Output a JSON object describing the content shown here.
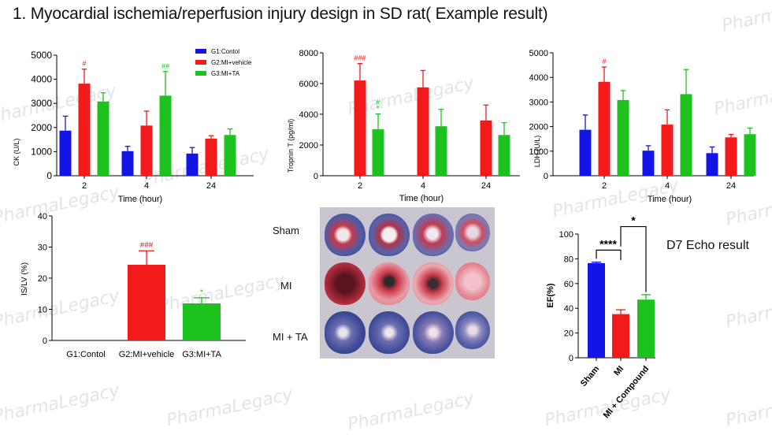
{
  "page_title": "1. Myocardial ischemia/reperfusion injury design in SD rat( Example result)",
  "watermark": "PharmaLegacy",
  "colors": {
    "g1": "#1414e6",
    "g2": "#f21a1a",
    "g3": "#1ec21e",
    "sham": "#1414e6",
    "mi": "#f21a1a",
    "compound": "#1ec21e"
  },
  "chart_data": [
    {
      "id": "ck",
      "type": "bar",
      "xlabel": "Time (hour)",
      "ylabel": "CK (U/L)",
      "ylim": [
        0,
        5000
      ],
      "yticks": [
        "0",
        "1000",
        "2000",
        "3000",
        "4000",
        "5000"
      ],
      "categories": [
        "2",
        "4",
        "24"
      ],
      "legend": [
        "G1:Contol",
        "G2:MI+vehicle",
        "G3:MI+TA"
      ],
      "series": [
        {
          "name": "G1:Contol",
          "values": [
            1870,
            1020,
            920
          ],
          "err": [
            600,
            200,
            250
          ],
          "sig": [
            "",
            "",
            ""
          ]
        },
        {
          "name": "G2:MI+vehicle",
          "values": [
            3820,
            2080,
            1540
          ],
          "err": [
            600,
            600,
            120
          ],
          "sig": [
            "#",
            "",
            ""
          ]
        },
        {
          "name": "G3:MI+TA",
          "values": [
            3080,
            3320,
            1690
          ],
          "err": [
            360,
            1000,
            250
          ],
          "sig": [
            "",
            "##",
            ""
          ]
        }
      ]
    },
    {
      "id": "troponin",
      "type": "bar",
      "xlabel": "Time (hour)",
      "ylabel": "Tropnin T (pg/ml)",
      "ylim": [
        0,
        8000
      ],
      "yticks": [
        "0",
        "2000",
        "4000",
        "6000",
        "8000"
      ],
      "categories": [
        "2",
        "4",
        "24"
      ],
      "series": [
        {
          "name": "G1:Contol",
          "values": [
            0,
            0,
            0
          ],
          "err": [
            0,
            0,
            0
          ],
          "sig": [
            "",
            "",
            ""
          ]
        },
        {
          "name": "G2:MI+vehicle",
          "values": [
            6200,
            5750,
            3600
          ],
          "err": [
            1100,
            1100,
            1000
          ],
          "sig": [
            "###",
            "",
            ""
          ]
        },
        {
          "name": "G3:MI+TA",
          "values": [
            3020,
            3220,
            2650
          ],
          "err": [
            1000,
            1100,
            800
          ],
          "sig": [
            "#\n*",
            "",
            ""
          ]
        }
      ]
    },
    {
      "id": "ldh",
      "type": "bar",
      "xlabel": "Time (hour)",
      "ylabel": "LDH (U/L)",
      "ylim": [
        0,
        5000
      ],
      "yticks": [
        "0",
        "1000",
        "2000",
        "3000",
        "4000",
        "5000"
      ],
      "categories": [
        "2",
        "4",
        "24"
      ],
      "series": [
        {
          "name": "G1:Contol",
          "values": [
            1870,
            1020,
            920
          ],
          "err": [
            600,
            200,
            250
          ],
          "sig": [
            "",
            "",
            ""
          ]
        },
        {
          "name": "G2:MI+vehicle",
          "values": [
            3820,
            2080,
            1560
          ],
          "err": [
            600,
            600,
            120
          ],
          "sig": [
            "#",
            "",
            ""
          ]
        },
        {
          "name": "G3:MI+TA",
          "values": [
            3080,
            3320,
            1690
          ],
          "err": [
            380,
            1000,
            250
          ],
          "sig": [
            "",
            "",
            ""
          ]
        }
      ]
    },
    {
      "id": "islv",
      "type": "bar",
      "xlabel": "",
      "ylabel": "IS/LV (%)",
      "ylim": [
        0,
        40
      ],
      "yticks": [
        "0",
        "10",
        "20",
        "30",
        "40"
      ],
      "categories": [
        "G1:Contol",
        "G2:MI+vehicle",
        "G3:MI+TA"
      ],
      "values": [
        0,
        24.3,
        11.9
      ],
      "err": [
        0,
        4.5,
        1.8
      ],
      "sig": [
        "",
        "###",
        "*"
      ]
    },
    {
      "id": "ef",
      "type": "bar",
      "xlabel": "",
      "ylabel": "EF(%)",
      "ylim": [
        0,
        100
      ],
      "yticks": [
        "0",
        "20",
        "40",
        "60",
        "80",
        "100"
      ],
      "categories": [
        "Sham",
        "MI",
        "MI + Compound"
      ],
      "values": [
        76.5,
        35.3,
        47
      ],
      "err": [
        0.8,
        3.5,
        4
      ],
      "comparisons": [
        {
          "label": "****",
          "from": "Sham",
          "to": "MI"
        },
        {
          "label": "*",
          "from": "MI",
          "to": "MI + Compound"
        }
      ]
    }
  ],
  "photos": {
    "rows": [
      "Sham",
      "MI",
      "MI + TA"
    ]
  },
  "echo_label": "D7 Echo result"
}
